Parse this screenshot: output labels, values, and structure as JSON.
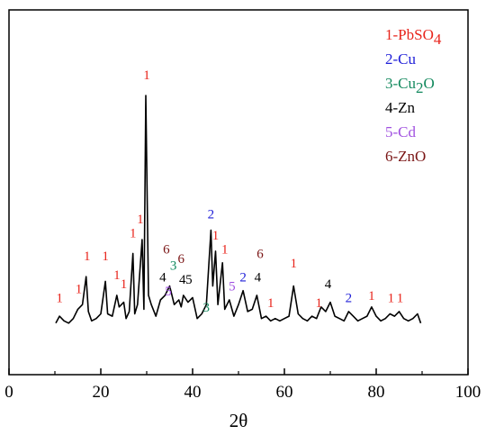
{
  "chart_data": {
    "type": "line",
    "title": "",
    "xlabel": "2θ",
    "ylabel": "",
    "xlim": [
      0,
      100
    ],
    "x_ticks": [
      0,
      20,
      40,
      60,
      80,
      100
    ],
    "y_ticks_shown": false,
    "grid": false,
    "legend_position": "top-right",
    "legend": [
      {
        "text": "1-PbSO",
        "sub": "4",
        "color": "#e8251c"
      },
      {
        "text": "2-Cu",
        "sub": "",
        "color": "#2020d8"
      },
      {
        "text": "3-Cu",
        "sub": "2",
        "tail": "O",
        "color": "#13895e"
      },
      {
        "text": "4-Zn",
        "sub": "",
        "color": "#000000"
      },
      {
        "text": "5-Cd",
        "sub": "",
        "color": "#a050e0"
      },
      {
        "text": "6-ZnO",
        "sub": "",
        "color": "#7a1515"
      }
    ],
    "series": [
      {
        "values": [
          [
            10.2,
            2
          ],
          [
            11.0,
            5
          ],
          [
            12.0,
            3
          ],
          [
            13.0,
            2
          ],
          [
            14.0,
            4
          ],
          [
            15.0,
            8
          ],
          [
            16.0,
            10
          ],
          [
            16.8,
            22
          ],
          [
            17.3,
            7
          ],
          [
            18.0,
            3
          ],
          [
            19.0,
            4
          ],
          [
            20.0,
            6
          ],
          [
            21.0,
            20
          ],
          [
            21.5,
            6
          ],
          [
            22.5,
            5
          ],
          [
            23.5,
            14
          ],
          [
            24.0,
            9
          ],
          [
            25.0,
            11
          ],
          [
            25.5,
            4
          ],
          [
            26.2,
            7
          ],
          [
            27.0,
            32
          ],
          [
            27.4,
            6
          ],
          [
            28.0,
            10
          ],
          [
            29.0,
            38
          ],
          [
            29.4,
            8
          ],
          [
            29.8,
            100
          ],
          [
            30.4,
            14
          ],
          [
            31.0,
            10
          ],
          [
            32.0,
            5
          ],
          [
            33.0,
            12
          ],
          [
            34.0,
            14
          ],
          [
            35.0,
            18
          ],
          [
            36.0,
            10
          ],
          [
            37.0,
            12
          ],
          [
            37.5,
            9
          ],
          [
            38.0,
            14
          ],
          [
            39.0,
            11
          ],
          [
            40.0,
            13
          ],
          [
            41.0,
            4
          ],
          [
            42.0,
            6
          ],
          [
            43.0,
            10
          ],
          [
            44.0,
            42
          ],
          [
            44.4,
            18
          ],
          [
            45.0,
            33
          ],
          [
            45.5,
            10
          ],
          [
            46.5,
            28
          ],
          [
            47.0,
            8
          ],
          [
            48.0,
            12
          ],
          [
            49.0,
            5
          ],
          [
            50.0,
            10
          ],
          [
            51.0,
            16
          ],
          [
            52.0,
            7
          ],
          [
            53.0,
            8
          ],
          [
            54.0,
            14
          ],
          [
            55.0,
            4
          ],
          [
            56.0,
            5
          ],
          [
            57.0,
            3
          ],
          [
            58.0,
            4
          ],
          [
            59.0,
            3
          ],
          [
            60.0,
            4
          ],
          [
            61.0,
            5
          ],
          [
            62.0,
            18
          ],
          [
            63.0,
            6
          ],
          [
            64.0,
            4
          ],
          [
            65.0,
            3
          ],
          [
            66.0,
            5
          ],
          [
            67.0,
            4
          ],
          [
            68.0,
            9
          ],
          [
            69.0,
            7
          ],
          [
            70.0,
            11
          ],
          [
            71.0,
            5
          ],
          [
            72.0,
            4
          ],
          [
            73.0,
            3
          ],
          [
            74.0,
            7
          ],
          [
            75.0,
            5
          ],
          [
            76.0,
            3
          ],
          [
            77.0,
            4
          ],
          [
            78.0,
            5
          ],
          [
            79.0,
            9
          ],
          [
            80.0,
            5
          ],
          [
            81.0,
            3
          ],
          [
            82.0,
            4
          ],
          [
            83.0,
            6
          ],
          [
            84.0,
            5
          ],
          [
            85.0,
            7
          ],
          [
            86.0,
            4
          ],
          [
            87.0,
            3
          ],
          [
            88.0,
            4
          ],
          [
            89.0,
            6
          ],
          [
            89.7,
            2
          ]
        ]
      }
    ],
    "peak_annotations": [
      {
        "text": "1",
        "x": 11,
        "y": 11,
        "color": "#e8251c"
      },
      {
        "text": "1",
        "x": 15.2,
        "y": 15,
        "color": "#e8251c"
      },
      {
        "text": "1",
        "x": 17,
        "y": 29,
        "color": "#e8251c"
      },
      {
        "text": "1",
        "x": 21,
        "y": 29,
        "color": "#e8251c"
      },
      {
        "text": "1",
        "x": 23.5,
        "y": 21,
        "color": "#e8251c"
      },
      {
        "text": "1",
        "x": 25,
        "y": 17,
        "color": "#e8251c"
      },
      {
        "text": "1",
        "x": 27,
        "y": 39,
        "color": "#e8251c"
      },
      {
        "text": "1",
        "x": 28.6,
        "y": 45,
        "color": "#e8251c"
      },
      {
        "text": "1",
        "x": 30,
        "y": 107,
        "color": "#e8251c"
      },
      {
        "text": "6",
        "x": 34.3,
        "y": 32,
        "color": "#7a1515"
      },
      {
        "text": "3",
        "x": 35.8,
        "y": 25,
        "color": "#13895e"
      },
      {
        "text": "4",
        "x": 33.5,
        "y": 20,
        "color": "#000000"
      },
      {
        "text": "6",
        "x": 37.5,
        "y": 28,
        "color": "#7a1515"
      },
      {
        "text": "5",
        "x": 34.7,
        "y": 14,
        "color": "#a050e0"
      },
      {
        "text": "4",
        "x": 37.8,
        "y": 19,
        "color": "#000000"
      },
      {
        "text": "5",
        "x": 39.2,
        "y": 19,
        "color": "#000000"
      },
      {
        "text": "3",
        "x": 43,
        "y": 7,
        "color": "#13895e"
      },
      {
        "text": "2",
        "x": 44,
        "y": 47,
        "color": "#2020d8"
      },
      {
        "text": "1",
        "x": 45,
        "y": 38,
        "color": "#e8251c"
      },
      {
        "text": "1",
        "x": 47,
        "y": 32,
        "color": "#e8251c"
      },
      {
        "text": "5",
        "x": 48.6,
        "y": 16,
        "color": "#a050e0"
      },
      {
        "text": "2",
        "x": 51,
        "y": 20,
        "color": "#2020d8"
      },
      {
        "text": "4",
        "x": 54.2,
        "y": 20,
        "color": "#000000"
      },
      {
        "text": "6",
        "x": 54.7,
        "y": 30,
        "color": "#7a1515"
      },
      {
        "text": "1",
        "x": 57,
        "y": 9,
        "color": "#e8251c"
      },
      {
        "text": "1",
        "x": 62,
        "y": 26,
        "color": "#e8251c"
      },
      {
        "text": "1",
        "x": 67.5,
        "y": 9,
        "color": "#e8251c"
      },
      {
        "text": "4",
        "x": 69.5,
        "y": 17,
        "color": "#000000"
      },
      {
        "text": "2",
        "x": 74,
        "y": 11,
        "color": "#2020d8"
      },
      {
        "text": "1",
        "x": 79,
        "y": 12,
        "color": "#e8251c"
      },
      {
        "text": "1",
        "x": 83.2,
        "y": 11,
        "color": "#e8251c"
      },
      {
        "text": "1",
        "x": 85.2,
        "y": 11,
        "color": "#e8251c"
      }
    ]
  }
}
